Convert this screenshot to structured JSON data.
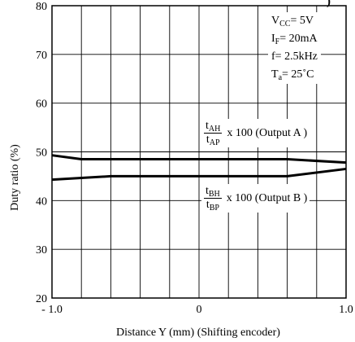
{
  "chart_data": {
    "type": "line",
    "title": "",
    "ylabel": "Duty ratio (%)",
    "xlabel": "Distance Y (mm) (Shifting encoder)",
    "xlim": [
      -1.0,
      1.0
    ],
    "ylim": [
      20,
      80
    ],
    "x_ticks": [
      -1.0,
      0,
      1.0
    ],
    "x_tick_labels": [
      "- 1.0",
      "0",
      "1.0"
    ],
    "y_ticks": [
      20,
      30,
      40,
      50,
      60,
      70,
      80
    ],
    "y_tick_labels": [
      "20",
      "30",
      "40",
      "50",
      "60",
      "70",
      "80"
    ],
    "grid": true,
    "series": [
      {
        "name": "Output A",
        "x": [
          -1.0,
          -0.8,
          0.6,
          1.0
        ],
        "y": [
          49.3,
          48.5,
          48.5,
          47.8
        ]
      },
      {
        "name": "Output B",
        "x": [
          -1.0,
          -0.6,
          0.6,
          1.0
        ],
        "y": [
          44.3,
          45.0,
          45.0,
          46.5
        ]
      }
    ],
    "conditions": {
      "vcc": {
        "sym": "V",
        "sub": "CC",
        "val": "= 5V"
      },
      "if": {
        "sym": "I",
        "sub": "F",
        "val": "= 20mA"
      },
      "f": {
        "sym": "f",
        "sub": "",
        "val": "= 2.5kHz"
      },
      "ta": {
        "sym": "T",
        "sub": "a",
        "val": "= 25˚C"
      }
    },
    "annotation_a": {
      "num_sym": "t",
      "num_sub": "AH",
      "den_sym": "t",
      "den_sub": "AP",
      "text": "x 100 (Output A )"
    },
    "annotation_b": {
      "num_sym": "t",
      "num_sub": "BH",
      "den_sym": "t",
      "den_sub": "BP",
      "text": "x 100 (Output B )"
    },
    "corner_mark": ")"
  }
}
